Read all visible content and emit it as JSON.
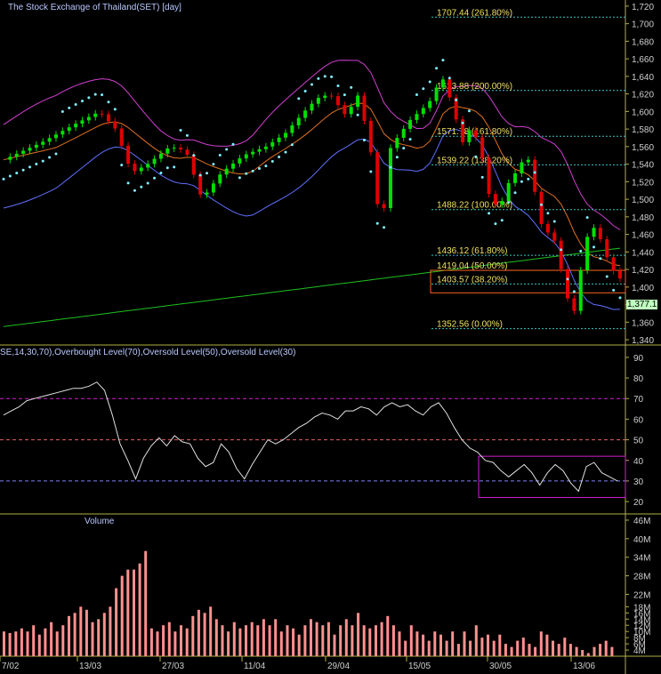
{
  "window": {
    "title": "The Stock Exchange of Thailand(SET) [day]",
    "rsi_title": "SE,14,30,70),Overbought Level(70),Oversold Level(50),Oversold Level(30)",
    "volume_title": "Volume"
  },
  "colors": {
    "background": "#000000",
    "panel_border": "#b0b040",
    "axis_text": "#cfcfcf",
    "title_text": "#b8c8ff",
    "up_candle": "#00e000",
    "down_candle": "#e00000",
    "bollinger": "#d040d0",
    "ema_orange": "#e07020",
    "ema_blue": "#6070ff",
    "ma_green": "#20c020",
    "sar_dots": "#80f0ff",
    "fib_text": "#f0e060",
    "rsi_line": "#e0e0e0",
    "level_70": "#d020d0",
    "level_50": "#e06060",
    "level_30": "#8080ff",
    "volume_bar": "#ff9090",
    "price_badge": "#c0ffc0"
  },
  "price_badge": "1,377.1",
  "chart_data": [
    {
      "type": "candlestick",
      "panel": "price",
      "title": "The Stock Exchange of Thailand(SET) [day]",
      "x_ticks": [
        "7/02",
        "13/03",
        "27/03",
        "11/04",
        "29/04",
        "15/05",
        "30/05",
        "13/06"
      ],
      "y_ticks": [
        "1,340",
        "1,360",
        "1,380",
        "1,400",
        "1,420",
        "1,440",
        "1,460",
        "1,480",
        "1,500",
        "1,520",
        "1,540",
        "1,560",
        "1,580",
        "1,600",
        "1,620",
        "1,640",
        "1,660",
        "1,680",
        "1,700",
        "1,720"
      ],
      "ylim": [
        1334,
        1727
      ],
      "fib_levels": [
        {
          "label": "1707.44 (261.80%)",
          "value": 1707.44
        },
        {
          "label": "1623.88 (200.00%)",
          "value": 1623.88
        },
        {
          "label": "1571.78 (161.80%)",
          "value": 1571.78
        },
        {
          "label": "1539.22 (138.20%)",
          "value": 1539.22
        },
        {
          "label": "1488.22 (100.00%)",
          "value": 1488.22
        },
        {
          "label": "1436.12 (61.80%)",
          "value": 1436.12
        },
        {
          "label": "1419.04 (50.00%)",
          "value": 1419.04
        },
        {
          "label": "1403.57 (38.20%)",
          "value": 1403.57
        },
        {
          "label": "1352.56 (0.00%)",
          "value": 1352.56
        }
      ],
      "last_value": 1377.1
    },
    {
      "type": "line",
      "panel": "rsi",
      "title": "SE,14,30,70),Overbought Level(70),Oversold Level(50),Oversold Level(30)",
      "y_ticks": [
        "20",
        "30",
        "40",
        "50",
        "60",
        "70",
        "80",
        "90"
      ],
      "ylim": [
        14,
        96
      ],
      "levels": [
        70,
        50,
        30
      ],
      "values": [
        62,
        64,
        66,
        69,
        70,
        71,
        72,
        73,
        74,
        75,
        75,
        76,
        78,
        74,
        62,
        48,
        40,
        31,
        41,
        47,
        51,
        47,
        52,
        49,
        48,
        41,
        37,
        39,
        48,
        44,
        36,
        31,
        38,
        44,
        50,
        48,
        50,
        53,
        56,
        58,
        61,
        63,
        62,
        60,
        64,
        64,
        66,
        65,
        62,
        66,
        68,
        66,
        67,
        64,
        62,
        66,
        68,
        63,
        56,
        50,
        46,
        44,
        40,
        39,
        35,
        32,
        35,
        38,
        34,
        28,
        34,
        38,
        35,
        29,
        25,
        37,
        39,
        34,
        32,
        30
      ]
    },
    {
      "type": "bar",
      "panel": "volume",
      "title": "Volume",
      "y_ticks": [
        "4M",
        "6M",
        "8M",
        "10M",
        "12M",
        "14M",
        "16M",
        "18M",
        "22M",
        "28M",
        "34M",
        "40M",
        "46M"
      ],
      "ylim": [
        2,
        48
      ],
      "values": [
        10,
        9.5,
        10,
        11,
        10,
        12,
        9,
        11,
        13,
        10,
        12,
        15,
        16,
        18,
        17,
        13,
        14,
        16,
        18,
        24,
        28,
        30,
        30,
        32,
        36,
        11,
        10,
        12,
        13,
        10,
        12,
        11,
        15,
        17,
        16,
        18,
        14,
        12,
        10,
        13,
        11,
        12,
        13,
        12,
        14,
        12,
        14,
        10,
        12,
        11,
        9,
        12,
        14,
        13,
        12,
        13,
        9,
        12,
        14,
        12,
        16,
        12,
        11,
        12,
        13,
        15,
        12,
        10,
        7,
        12,
        10,
        9,
        7,
        10,
        9,
        7,
        10,
        6,
        10,
        7,
        12,
        8,
        9,
        7,
        9,
        6,
        5,
        7,
        8,
        6,
        5,
        10,
        9,
        7,
        6,
        8,
        6,
        5,
        4,
        3,
        5,
        6,
        7,
        5
      ]
    }
  ]
}
